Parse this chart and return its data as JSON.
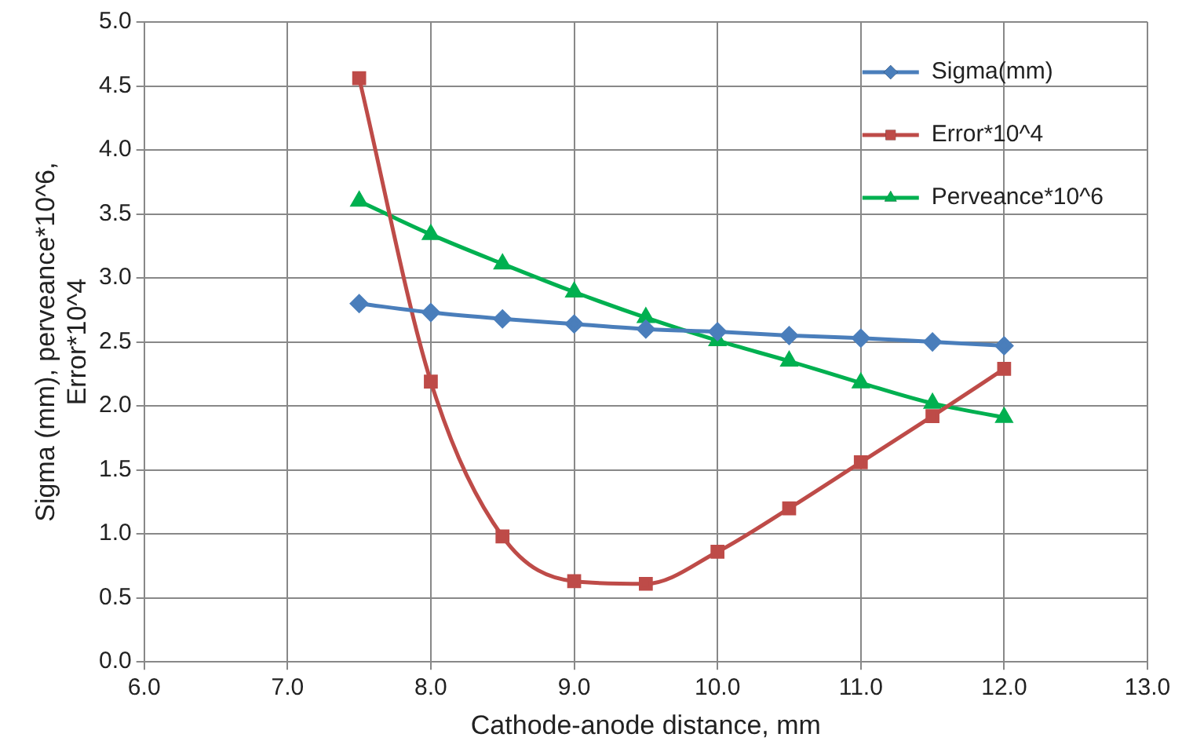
{
  "chart_data": {
    "type": "line",
    "xlabel": "Cathode-anode distance, mm",
    "ylabel": "Sigma (mm), perveance*10^6, Error*10^4",
    "x": [
      7.5,
      8,
      8.5,
      9,
      9.5,
      10,
      10.5,
      11,
      11.5,
      12
    ],
    "series": [
      {
        "name": "Sigma(mm)",
        "color": "#4a7ebb",
        "marker": "diamond",
        "values": [
          2.8,
          2.73,
          2.68,
          2.64,
          2.6,
          2.58,
          2.55,
          2.53,
          2.5,
          2.47
        ]
      },
      {
        "name": "Error*10^4",
        "color": "#be4b48",
        "marker": "square",
        "values": [
          4.56,
          2.19,
          0.98,
          0.63,
          0.61,
          0.86,
          1.2,
          1.56,
          1.92,
          2.29
        ]
      },
      {
        "name": "Perveance*10^6",
        "color": "#00b050",
        "marker": "triangle",
        "values": [
          3.6,
          3.34,
          3.11,
          2.89,
          2.69,
          2.51,
          2.35,
          2.18,
          2.02,
          1.91
        ]
      }
    ],
    "xlim": [
      6,
      13
    ],
    "xticks": [
      {
        "value": 6,
        "label": "6.0"
      },
      {
        "value": 7,
        "label": "7.0"
      },
      {
        "value": 8,
        "label": "8.0"
      },
      {
        "value": 9,
        "label": "9.0"
      },
      {
        "value": 10,
        "label": "10.0"
      },
      {
        "value": 11,
        "label": "11.0"
      },
      {
        "value": 12,
        "label": "12.0"
      },
      {
        "value": 13,
        "label": "13.0"
      }
    ],
    "ylim": [
      0,
      5
    ],
    "yticks": [
      {
        "value": 0,
        "label": "0.0"
      },
      {
        "value": 0.5,
        "label": "0.5"
      },
      {
        "value": 1,
        "label": "1.0"
      },
      {
        "value": 1.5,
        "label": "1.5"
      },
      {
        "value": 2,
        "label": "2.0"
      },
      {
        "value": 2.5,
        "label": "2.5"
      },
      {
        "value": 3,
        "label": "3.0"
      },
      {
        "value": 3.5,
        "label": "3.5"
      },
      {
        "value": 4,
        "label": "4.0"
      },
      {
        "value": 4.5,
        "label": "4.5"
      },
      {
        "value": 5,
        "label": "5.0"
      }
    ],
    "grid": true,
    "legend": "top right"
  }
}
